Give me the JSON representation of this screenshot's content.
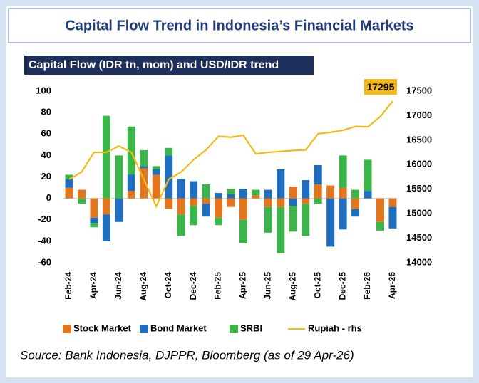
{
  "chart_data": {
    "type": "bar",
    "title": "Capital Flow Trend in Indonesia’s Financial Markets",
    "subtitle": "Capital Flow (IDR tn, mom) and USD/IDR trend",
    "source": "Source: Bank Indonesia, DJPPR, Bloomberg (as of 29 Apr-26)",
    "categories": [
      "Feb-24",
      null,
      "Apr-24",
      null,
      "Jun-24",
      null,
      "Aug-24",
      null,
      "Oct-24",
      null,
      "Dec-24",
      null,
      "Feb-25",
      null,
      "Apr-25",
      null,
      "Jun-25",
      null,
      "Aug-25",
      null,
      "Oct-25",
      null,
      "Dec-25",
      null,
      "Feb-26",
      null,
      "Apr-26"
    ],
    "stacked": true,
    "series": [
      {
        "name": "Stock Market",
        "color": "#e2761f",
        "values": [
          10,
          8,
          -18,
          -15,
          0,
          7,
          28,
          22,
          -10,
          -15,
          -7,
          -5,
          -18,
          -8,
          -20,
          3,
          -8,
          -8,
          11,
          -5,
          13,
          12,
          10,
          -10,
          0,
          -22,
          -8
        ]
      },
      {
        "name": "Bond Market",
        "color": "#1f6ebf",
        "values": [
          8,
          0,
          -5,
          -25,
          -22,
          15,
          2,
          5,
          40,
          18,
          16,
          -12,
          5,
          4,
          9,
          0,
          8,
          27,
          -7,
          17,
          18,
          -45,
          -29,
          -7,
          7,
          0,
          -20
        ]
      },
      {
        "name": "SRBI",
        "color": "#3bb54a",
        "values": [
          4,
          -5,
          -4,
          77,
          40,
          45,
          15,
          3,
          7,
          -20,
          -18,
          13,
          -7,
          5,
          -22,
          5,
          -24,
          -43,
          -24,
          -30,
          -5,
          0,
          30,
          8,
          29,
          -8,
          0
        ]
      },
      {
        "name": "Rupiah - rhs",
        "color": "#f5b915",
        "type": "line",
        "axis": "y2",
        "label_last": true,
        "label_color": "#f5b915",
        "values": [
          15700,
          15850,
          16250,
          16250,
          16380,
          16250,
          15700,
          15150,
          15700,
          15850,
          16100,
          16300,
          16580,
          16560,
          16600,
          16220,
          16250,
          16270,
          16290,
          16300,
          16630,
          16660,
          16700,
          16780,
          16770,
          16980,
          17295
        ]
      }
    ],
    "ylim": [
      -60,
      100
    ],
    "yticks": [
      -60,
      -40,
      -20,
      0,
      20,
      40,
      60,
      80,
      100
    ],
    "y2lim": [
      14000,
      17500
    ],
    "y2ticks": [
      14000,
      14500,
      15000,
      15500,
      16000,
      16500,
      17000,
      17500
    ],
    "negative_tick_color": "#e00000",
    "grid": false,
    "legend": "bottom"
  }
}
